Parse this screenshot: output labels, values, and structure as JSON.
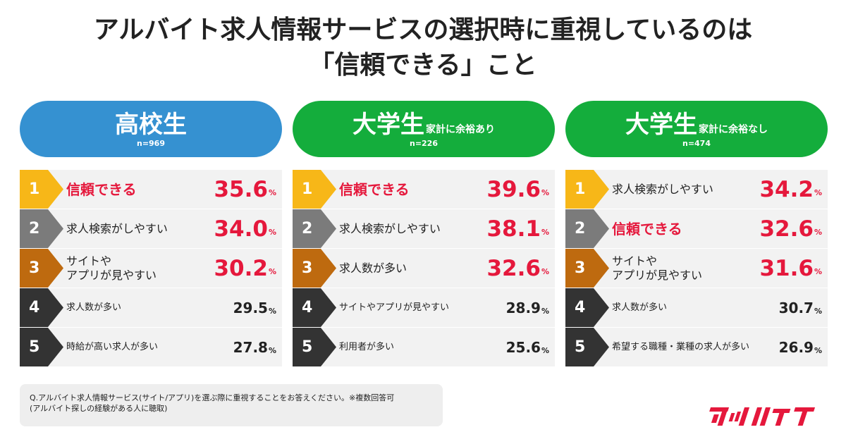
{
  "title": {
    "line1": "アルバイト求人情報サービスの選択時に重視しているのは",
    "line2": "「信頼できる」こと"
  },
  "colors": {
    "accent_red": "#e5183c",
    "pill_blue": "#3591d1",
    "pill_green": "#14ad3c",
    "rank_gold": "#f7b718",
    "rank_gray": "#7b7b7b",
    "rank_bronze": "#be6a0f",
    "rank_dark": "#333333",
    "logo_red": "#e5183c"
  },
  "chart_data": {
    "type": "table",
    "unit": "%",
    "panels": [
      {
        "name": "高校生",
        "subtitle": "",
        "n": "n=969",
        "color": "pill_blue",
        "rows": [
          {
            "rank": "1",
            "label": "信頼できる",
            "value": "35.6",
            "highlight": true
          },
          {
            "rank": "2",
            "label": "求人検索がしやすい",
            "value": "34.0",
            "highlight": false
          },
          {
            "rank": "3",
            "label": "サイトや\nアプリが見やすい",
            "value": "30.2",
            "highlight": false
          },
          {
            "rank": "4",
            "label": "求人数が多い",
            "value": "29.5",
            "highlight": false
          },
          {
            "rank": "5",
            "label": "時給が高い求人が多い",
            "value": "27.8",
            "highlight": false
          }
        ]
      },
      {
        "name": "大学生",
        "subtitle": "家計に余裕あり",
        "n": "n=226",
        "color": "pill_green",
        "rows": [
          {
            "rank": "1",
            "label": "信頼できる",
            "value": "39.6",
            "highlight": true
          },
          {
            "rank": "2",
            "label": "求人検索がしやすい",
            "value": "38.1",
            "highlight": false
          },
          {
            "rank": "3",
            "label": "求人数が多い",
            "value": "32.6",
            "highlight": false
          },
          {
            "rank": "4",
            "label": "サイトやアプリが見やすい",
            "value": "28.9",
            "highlight": false
          },
          {
            "rank": "5",
            "label": "利用者が多い",
            "value": "25.6",
            "highlight": false
          }
        ]
      },
      {
        "name": "大学生",
        "subtitle": "家計に余裕なし",
        "n": "n=474",
        "color": "pill_green",
        "rows": [
          {
            "rank": "1",
            "label": "求人検索がしやすい",
            "value": "34.2",
            "highlight": false
          },
          {
            "rank": "2",
            "label": "信頼できる",
            "value": "32.6",
            "highlight": true
          },
          {
            "rank": "3",
            "label": "サイトや\nアプリが見やすい",
            "value": "31.6",
            "highlight": false
          },
          {
            "rank": "4",
            "label": "求人数が多い",
            "value": "30.7",
            "highlight": false
          },
          {
            "rank": "5",
            "label": "希望する職種・業種の求人が多い",
            "value": "26.9",
            "highlight": false
          }
        ]
      }
    ]
  },
  "note": {
    "line1": "Q.アルバイト求人情報サービス(サイト/アプリ)を選ぶ際に重視することをお答えください。※複数回答可",
    "line2": "(アルバイト探しの経験がある人に聴取)"
  },
  "logo": {
    "name": "マッハバイト"
  }
}
